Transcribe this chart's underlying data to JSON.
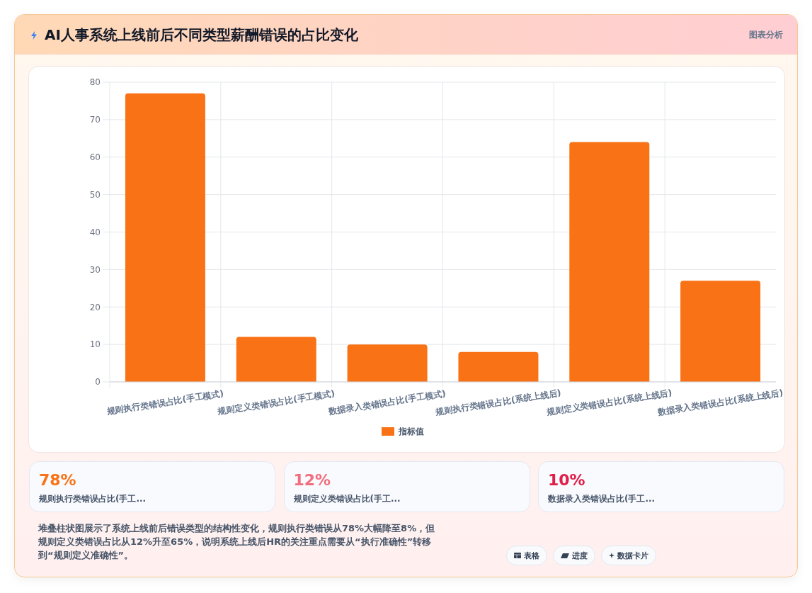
{
  "chart_data": {
    "type": "bar",
    "title": "AI人事系统上线前后不同类型薪酬错误的占比变化",
    "categories": [
      "规则执行类错误占比(手工模式)",
      "规则定义类错误占比(手工模式)",
      "数据录入类错误占比(手工模式)",
      "规则执行类错误占比(系统上线后)",
      "规则定义类错误占比(系统上线后)",
      "数据录入类错误占比(系统上线后)"
    ],
    "series": [
      {
        "name": "指标值",
        "color": "#f97316",
        "values": [
          77,
          12,
          10,
          8,
          64,
          27
        ]
      }
    ],
    "ylim": [
      0,
      80
    ],
    "yticks": [
      0,
      10,
      20,
      30,
      40,
      50,
      60,
      70,
      80
    ],
    "grid": true,
    "legend": "bottom",
    "annotations": [
      "图表分析",
      "78%",
      "规则执行类错误占比(手工...",
      "12%",
      "规则定义类错误占比(手工...",
      "10%",
      "数据录入类错误占比(手工...",
      "堆叠柱状图展示了系统上线前后错误类型的结构性变化，规则执行类错误从78%大幅降至8%，但规则定义类错误占比从12%升至65%，说明系统上线后HR的关注重点需要从“执行准确性”转移到“规则定义准确性”。",
      "表格",
      "进度",
      "数据卡片"
    ]
  }
}
